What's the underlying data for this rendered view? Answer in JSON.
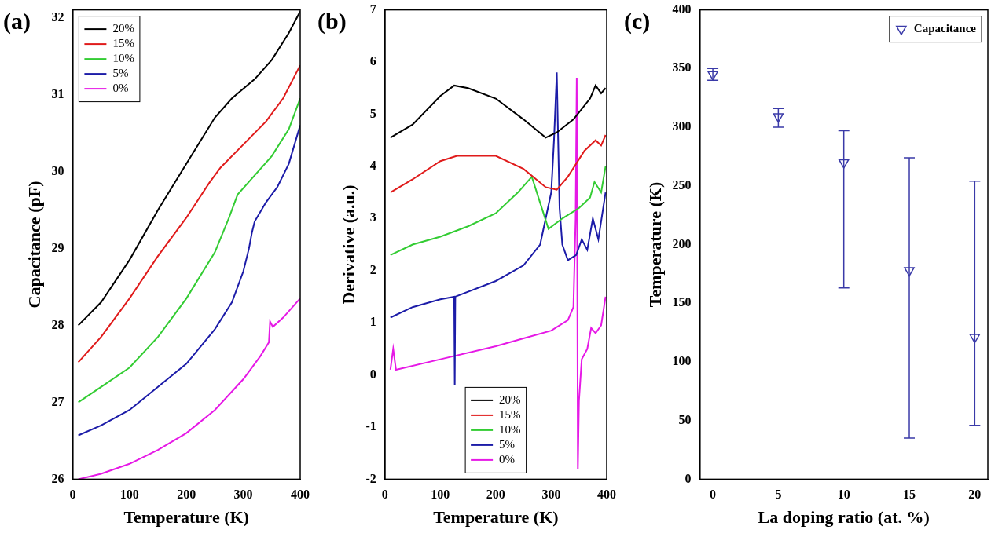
{
  "chart_data": [
    {
      "type": "line",
      "title": "(a)",
      "x_label": "Temperature (K)",
      "y_label": "Capacitance (pF)",
      "xlim": [
        0,
        400
      ],
      "xticks": [
        0,
        100,
        200,
        300,
        400
      ],
      "ylim": [
        26,
        32.1
      ],
      "yticks": [
        26,
        27,
        28,
        29,
        30,
        31,
        32
      ],
      "grid": false,
      "legend": "upper left",
      "series": [
        {
          "name": "20%",
          "color": "#000000",
          "x": [
            10,
            50,
            100,
            150,
            200,
            250,
            280,
            320,
            350,
            380,
            400
          ],
          "values": [
            28.0,
            28.3,
            28.85,
            29.5,
            30.1,
            30.7,
            30.95,
            31.2,
            31.45,
            31.8,
            32.08
          ]
        },
        {
          "name": "15%",
          "color": "#e01b1b",
          "x": [
            10,
            50,
            100,
            150,
            200,
            240,
            260,
            300,
            340,
            370,
            400
          ],
          "values": [
            27.52,
            27.85,
            28.35,
            28.9,
            29.4,
            29.85,
            30.05,
            30.35,
            30.65,
            30.95,
            31.38
          ]
        },
        {
          "name": "10%",
          "color": "#33cc33",
          "x": [
            10,
            50,
            100,
            150,
            200,
            250,
            275,
            290,
            320,
            350,
            380,
            400
          ],
          "values": [
            27.0,
            27.2,
            27.45,
            27.85,
            28.35,
            28.95,
            29.4,
            29.7,
            29.95,
            30.2,
            30.55,
            30.95
          ]
        },
        {
          "name": "5%",
          "color": "#1c1ca8",
          "x": [
            10,
            50,
            100,
            150,
            200,
            250,
            280,
            300,
            310,
            315,
            320,
            340,
            360,
            380,
            400
          ],
          "values": [
            26.57,
            26.7,
            26.9,
            27.2,
            27.5,
            27.95,
            28.3,
            28.7,
            29.0,
            29.2,
            29.35,
            29.6,
            29.8,
            30.1,
            30.6
          ]
        },
        {
          "name": "0%",
          "color": "#e619e6",
          "x": [
            10,
            50,
            100,
            150,
            200,
            250,
            300,
            330,
            345,
            347,
            352,
            370,
            400
          ],
          "values": [
            26.0,
            26.07,
            26.2,
            26.38,
            26.6,
            26.9,
            27.3,
            27.6,
            27.78,
            28.05,
            27.98,
            28.1,
            28.35
          ]
        }
      ]
    },
    {
      "type": "line",
      "title": "(b)",
      "x_label": "Temperature (K)",
      "y_label": "Derivative (a.u.)",
      "xlim": [
        0,
        400
      ],
      "xticks": [
        0,
        100,
        200,
        300,
        400
      ],
      "ylim": [
        -2,
        7
      ],
      "yticks": [
        -2,
        -1,
        0,
        1,
        2,
        3,
        4,
        5,
        6,
        7
      ],
      "grid": false,
      "legend": "lower center",
      "series": [
        {
          "name": "20%",
          "color": "#000000",
          "x": [
            10,
            50,
            100,
            125,
            150,
            200,
            250,
            290,
            310,
            340,
            370,
            380,
            390,
            398
          ],
          "values": [
            4.55,
            4.8,
            5.35,
            5.55,
            5.5,
            5.3,
            4.9,
            4.55,
            4.65,
            4.9,
            5.3,
            5.55,
            5.4,
            5.5
          ]
        },
        {
          "name": "15%",
          "color": "#e01b1b",
          "x": [
            10,
            50,
            100,
            130,
            200,
            250,
            290,
            310,
            330,
            360,
            380,
            390,
            398
          ],
          "values": [
            3.5,
            3.75,
            4.1,
            4.2,
            4.2,
            3.95,
            3.6,
            3.55,
            3.8,
            4.3,
            4.5,
            4.4,
            4.6
          ]
        },
        {
          "name": "10%",
          "color": "#33cc33",
          "x": [
            10,
            50,
            100,
            150,
            200,
            240,
            265,
            280,
            295,
            320,
            350,
            370,
            378,
            390,
            398
          ],
          "values": [
            2.3,
            2.5,
            2.65,
            2.85,
            3.1,
            3.5,
            3.8,
            3.3,
            2.8,
            3.0,
            3.2,
            3.4,
            3.7,
            3.5,
            4.0
          ]
        },
        {
          "name": "5%",
          "color": "#1c1ca8",
          "x": [
            10,
            50,
            100,
            125,
            126,
            127,
            200,
            250,
            280,
            300,
            305,
            310,
            315,
            320,
            330,
            345,
            355,
            365,
            375,
            385,
            398
          ],
          "values": [
            1.1,
            1.3,
            1.45,
            1.5,
            -0.2,
            1.5,
            1.8,
            2.1,
            2.5,
            3.5,
            4.5,
            5.8,
            3.2,
            2.5,
            2.2,
            2.3,
            2.6,
            2.4,
            3.0,
            2.6,
            3.5
          ]
        },
        {
          "name": "0%",
          "color": "#e619e6",
          "x": [
            10,
            15,
            20,
            100,
            200,
            250,
            300,
            330,
            340,
            344,
            346,
            348,
            350,
            355,
            365,
            372,
            380,
            390,
            398
          ],
          "values": [
            0.1,
            0.5,
            0.1,
            0.3,
            0.55,
            0.7,
            0.85,
            1.05,
            1.3,
            3.0,
            5.7,
            -1.8,
            -0.5,
            0.3,
            0.5,
            0.9,
            0.8,
            0.95,
            1.5
          ]
        }
      ]
    },
    {
      "type": "scatter",
      "title": "(c)",
      "x_label": "La doping ratio (at. %)",
      "y_label": "Temperature (K)",
      "xlim": [
        -1,
        21
      ],
      "xticks": [
        0,
        5,
        10,
        15,
        20
      ],
      "ylim": [
        0,
        400
      ],
      "yticks": [
        0,
        50,
        100,
        150,
        200,
        250,
        300,
        350,
        400
      ],
      "grid": false,
      "legend": "upper right",
      "series": [
        {
          "name": "Capacitance",
          "color": "#3a3aa8",
          "marker": "triangle_down",
          "x": [
            0,
            5,
            10,
            15,
            20
          ],
          "values": [
            345,
            309,
            270,
            178,
            121
          ],
          "error_lower": [
            340,
            300,
            163,
            35,
            46
          ],
          "error_upper": [
            350,
            316,
            297,
            274,
            254
          ]
        }
      ]
    }
  ]
}
